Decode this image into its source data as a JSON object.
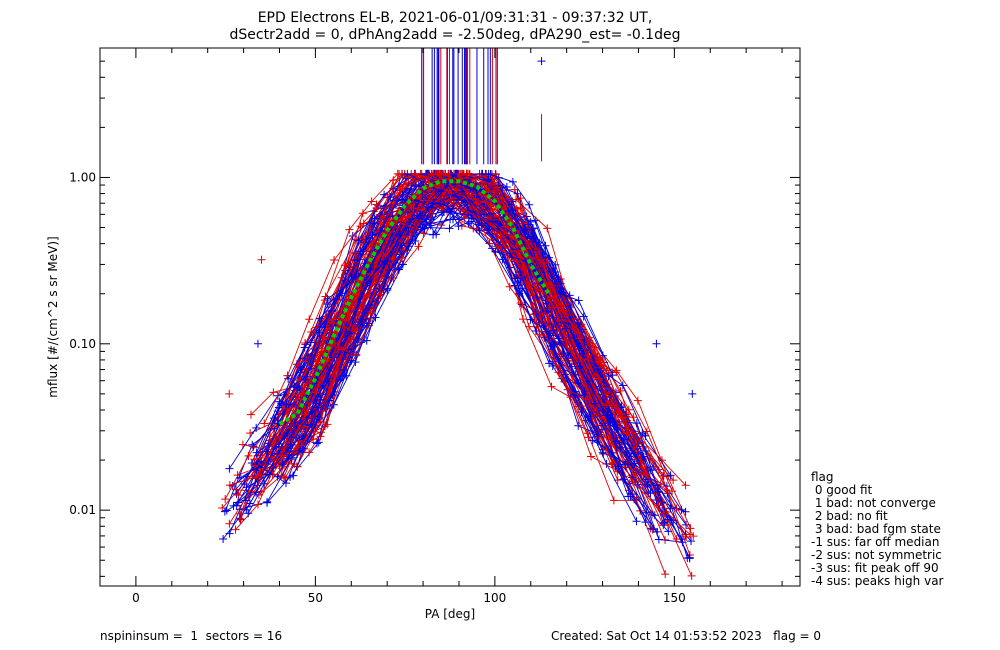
{
  "chart_data": {
    "type": "line",
    "title_line1": "EPD Electrons EL-B, 2021-06-01/09:31:31 - 09:37:32 UT,",
    "title_line2": "dSectr2add = 0, dPhAng2add = -2.50deg, dPA290_est=  -0.1deg",
    "xlabel": "PA [deg]",
    "ylabel": "mflux [#/(cm^2 s sr MeV)]",
    "xlim": [
      -10,
      185
    ],
    "ylim": [
      0.0035,
      6.0
    ],
    "yscale": "log",
    "xticks": [
      0,
      50,
      100,
      150
    ],
    "xtick_labels": [
      "0",
      "50",
      "100",
      "150"
    ],
    "yticks": [
      0.01,
      0.1,
      1.0
    ],
    "ytick_labels": [
      "0.01",
      "0.10",
      "1.00"
    ],
    "colors": {
      "red_series": "#e00000",
      "blue_series": "#0000e0",
      "fit": "#00d000"
    },
    "fit_curve": {
      "x": [
        40,
        45,
        50,
        55,
        60,
        65,
        70,
        75,
        80,
        85,
        90,
        95,
        100,
        105,
        110,
        115
      ],
      "y": [
        0.033,
        0.038,
        0.062,
        0.11,
        0.19,
        0.31,
        0.48,
        0.68,
        0.86,
        0.95,
        0.95,
        0.88,
        0.72,
        0.5,
        0.3,
        0.2
      ]
    },
    "envelope": {
      "x": [
        30,
        40,
        45,
        50,
        55,
        60,
        65,
        70,
        75,
        80,
        85,
        90,
        95,
        100,
        105,
        110,
        115,
        120,
        130,
        140,
        150
      ],
      "y": [
        0.015,
        0.025,
        0.035,
        0.055,
        0.1,
        0.17,
        0.28,
        0.45,
        0.65,
        0.82,
        0.9,
        0.88,
        0.82,
        0.68,
        0.48,
        0.3,
        0.18,
        0.1,
        0.045,
        0.018,
        0.008
      ]
    },
    "sample_points": [
      {
        "x": 35,
        "y": 0.32,
        "series": "red"
      },
      {
        "x": 26,
        "y": 0.05,
        "series": "red"
      },
      {
        "x": 34,
        "y": 0.1,
        "series": "blue"
      },
      {
        "x": 145,
        "y": 0.1,
        "series": "blue"
      },
      {
        "x": 155,
        "y": 0.05,
        "series": "blue"
      },
      {
        "x": 113,
        "y": 5.0,
        "series": "blue"
      }
    ],
    "legend": {
      "title": "flag",
      "entries": [
        " 0 good fit",
        " 1 bad: not converge",
        " 2 bad: no fit",
        " 3 bad: bad fgm state",
        "-1 sus: far off median",
        "-2 sus: not symmetric",
        "-3 sus: fit peak off 90",
        "-4 sus: peaks high var"
      ]
    }
  },
  "footer": {
    "left": "nspininsum =  1  sectors = 16",
    "right": "Created: Sat Oct 14 01:53:52 2023   flag = 0"
  }
}
